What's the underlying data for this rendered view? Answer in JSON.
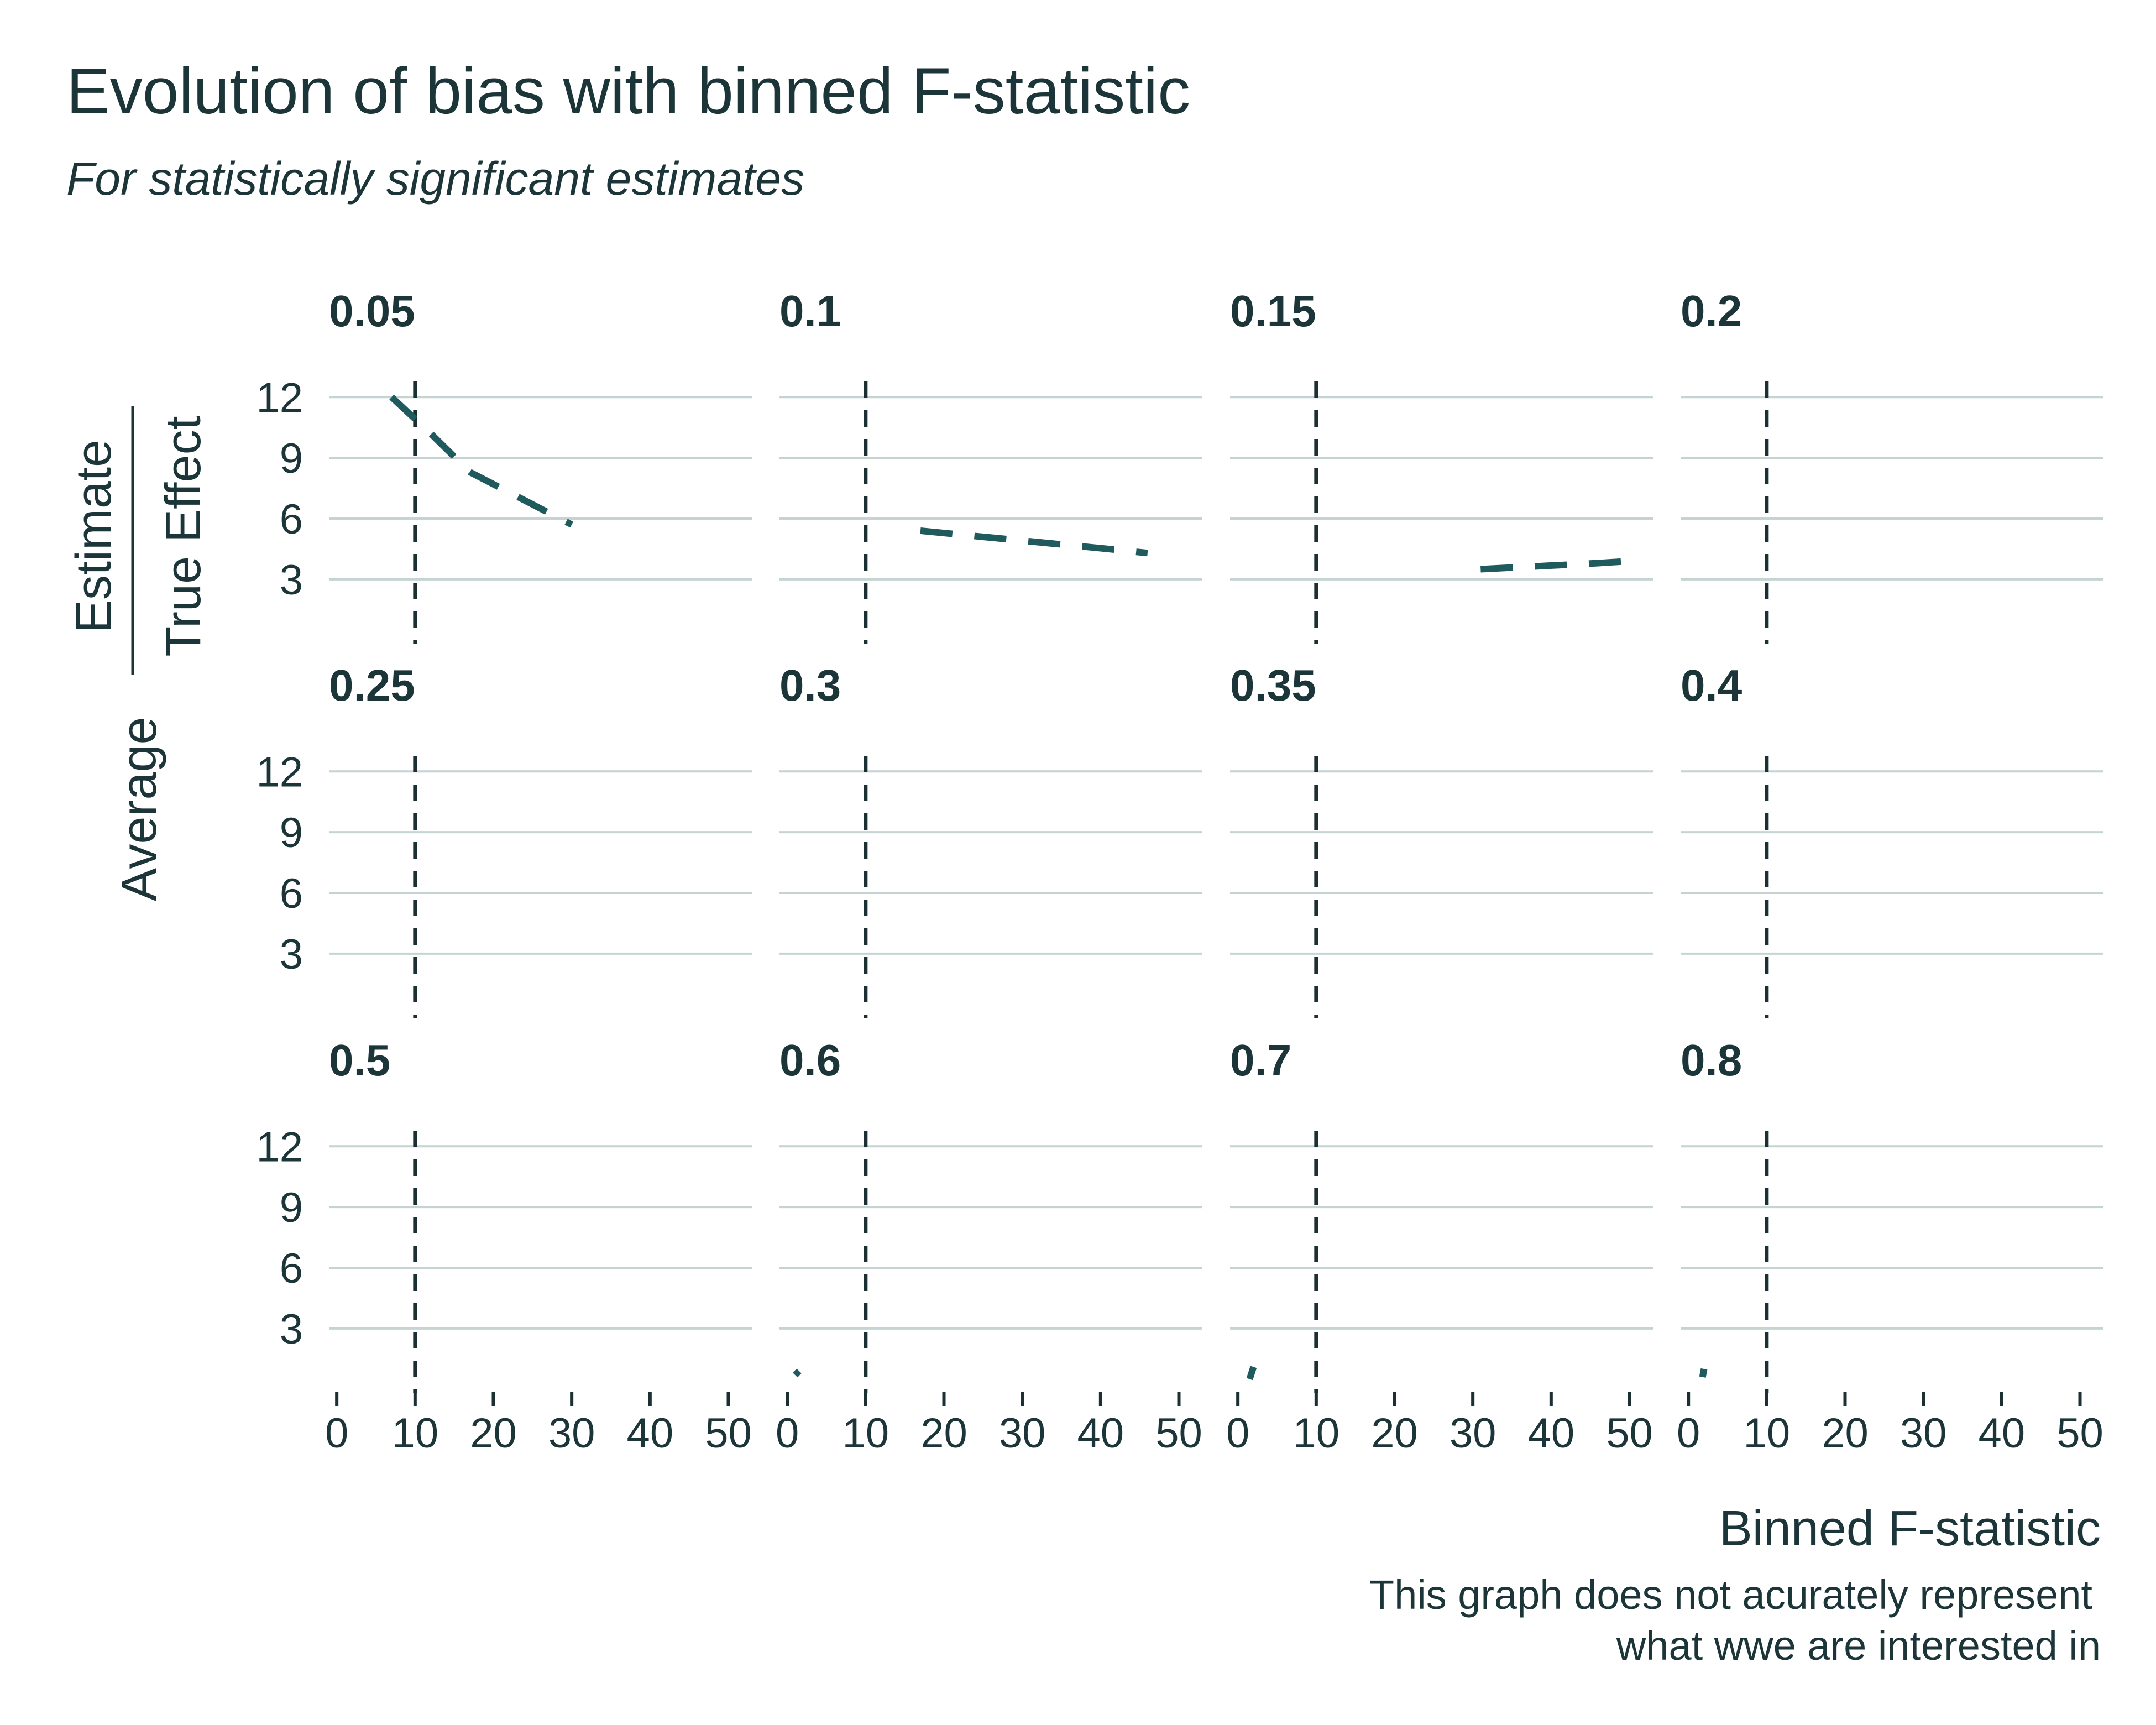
{
  "chart_data": {
    "type": "line",
    "title": "Evolution of bias with binned F-statistic",
    "subtitle": "For statistically significant estimates",
    "ylabel": {
      "prefix": "Average",
      "numerator": "Estimate",
      "denominator": "True Effect"
    },
    "xlabel": "Binned F-statistic",
    "caption": [
      "This graph does not acurately represent",
      "what wwe are interested in"
    ],
    "xlim": [
      -1,
      53
    ],
    "ylim": [
      -0.2,
      12.5
    ],
    "x_ticks": [
      0,
      10,
      20,
      30,
      40,
      50
    ],
    "y_ticks": [
      3,
      6,
      9,
      12
    ],
    "reference_line_x": 10,
    "grid": "horizontal",
    "line_style": "dashed",
    "colors": {
      "line": "#1f5a5c",
      "reference": "#1c2f33",
      "grid": "#c5d4d2",
      "text": "#1c3539"
    },
    "panels": [
      {
        "label": "0.05",
        "x": [
          7,
          12,
          17,
          22,
          30
        ],
        "y": [
          12.0,
          10.2,
          8.3,
          7.3,
          5.7
        ]
      },
      {
        "label": "0.1",
        "x": [
          17,
          25,
          33,
          41,
          46
        ],
        "y": [
          5.4,
          5.1,
          4.8,
          4.5,
          4.3
        ]
      },
      {
        "label": "0.15",
        "x": [
          31,
          36,
          41,
          46,
          50
        ],
        "y": [
          3.5,
          3.6,
          3.7,
          3.8,
          3.9
        ]
      },
      {
        "label": "0.2",
        "x": [],
        "y": []
      },
      {
        "label": "0.25",
        "x": [],
        "y": []
      },
      {
        "label": "0.3",
        "x": [],
        "y": []
      },
      {
        "label": "0.35",
        "x": [],
        "y": []
      },
      {
        "label": "0.4",
        "x": [],
        "y": []
      },
      {
        "label": "0.5",
        "x": [],
        "y": []
      },
      {
        "label": "0.6",
        "x": [
          1,
          1.5
        ],
        "y": [
          0.7,
          0.9
        ]
      },
      {
        "label": "0.7",
        "x": [
          1.5,
          2.0
        ],
        "y": [
          0.5,
          1.1
        ]
      },
      {
        "label": "0.8",
        "x": [
          1.8,
          2.0
        ],
        "y": [
          0.6,
          1.0
        ]
      }
    ]
  }
}
